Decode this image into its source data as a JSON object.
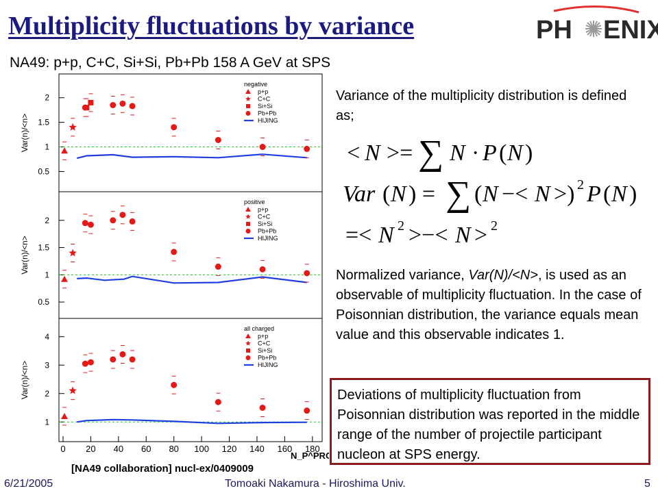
{
  "title": "Multiplicity fluctuations by variance",
  "logo_text": "PHENIX",
  "subtitle": "NA49: p+p, C+C, Si+Si, Pb+Pb 158 A GeV at SPS",
  "description": "Variance of the multiplicity distribution is defined as;",
  "normalized": {
    "prefix": "Normalized variance, ",
    "italic": "Var(N)/<N>",
    "suffix": ", is used as an observable of multiplicity fluctuation. In the case of Poisonnian distribution, the variance equals mean value and this observable indicates 1."
  },
  "box_text": "Deviations of multiplicity fluctuation from Poisonnian distribution was reported in the middle range of the number of projectile participant nucleon at SPS energy.",
  "citation": "[NA49 collaboration] nucl-ex/0409009",
  "footer": {
    "date": "6/21/2005",
    "author": "Tomoaki Nakamura - Hiroshima Univ.",
    "page": "5"
  },
  "colors": {
    "title": "#1a1a80",
    "marker": "#e61919",
    "hijing": "#1f3ee0",
    "reference": "#33bb33",
    "box_border": "#8b1a1a"
  },
  "chart_data": {
    "type": "scatter",
    "ylabel": "Var(n)/<n>",
    "xlabel": "N_P^PROJ",
    "x_ticks": [
      "0",
      "20",
      "40",
      "60",
      "80",
      "100",
      "120",
      "140",
      "160",
      "180"
    ],
    "x_range": [
      0,
      190
    ],
    "legend_entries": [
      "p+p",
      "C+C",
      "Si+Si",
      "Pb+Pb",
      "HIJING"
    ],
    "panels": [
      {
        "name": "negative",
        "ylim": [
          0.2,
          2.4
        ],
        "y_ticks": [
          "0.5",
          "1",
          "1.5",
          "2"
        ],
        "pp": [
          {
            "x": 1,
            "y": 0.92
          }
        ],
        "cc": [
          {
            "x": 7,
            "y": 1.4
          }
        ],
        "sisi": [
          {
            "x": 17,
            "y": 1.8
          },
          {
            "x": 20,
            "y": 1.9
          }
        ],
        "pbpb": [
          {
            "x": 16,
            "y": 1.8
          },
          {
            "x": 36,
            "y": 1.85
          },
          {
            "x": 43,
            "y": 1.88
          },
          {
            "x": 50,
            "y": 1.83
          },
          {
            "x": 80,
            "y": 1.4
          },
          {
            "x": 112,
            "y": 1.14
          },
          {
            "x": 144,
            "y": 1.0
          },
          {
            "x": 176,
            "y": 0.96
          }
        ],
        "hijing": [
          {
            "x": 10,
            "y": 0.77
          },
          {
            "x": 17,
            "y": 0.82
          },
          {
            "x": 36,
            "y": 0.84
          },
          {
            "x": 50,
            "y": 0.79
          },
          {
            "x": 80,
            "y": 0.8
          },
          {
            "x": 112,
            "y": 0.78
          },
          {
            "x": 144,
            "y": 0.85
          },
          {
            "x": 176,
            "y": 0.78
          }
        ]
      },
      {
        "name": "positive",
        "ylim": [
          0.3,
          2.45
        ],
        "y_ticks": [
          "0.5",
          "1",
          "1.5",
          "2"
        ],
        "pp": [
          {
            "x": 1,
            "y": 0.92
          }
        ],
        "cc": [
          {
            "x": 7,
            "y": 1.4
          }
        ],
        "sisi": [],
        "pbpb": [
          {
            "x": 16,
            "y": 1.95
          },
          {
            "x": 20,
            "y": 1.92
          },
          {
            "x": 36,
            "y": 2.0
          },
          {
            "x": 43,
            "y": 2.1
          },
          {
            "x": 50,
            "y": 1.98
          },
          {
            "x": 80,
            "y": 1.42
          },
          {
            "x": 112,
            "y": 1.15
          },
          {
            "x": 144,
            "y": 1.1
          },
          {
            "x": 176,
            "y": 1.03
          }
        ],
        "hijing": [
          {
            "x": 10,
            "y": 0.93
          },
          {
            "x": 17,
            "y": 0.94
          },
          {
            "x": 30,
            "y": 0.9
          },
          {
            "x": 44,
            "y": 0.92
          },
          {
            "x": 50,
            "y": 0.97
          },
          {
            "x": 80,
            "y": 0.85
          },
          {
            "x": 112,
            "y": 0.86
          },
          {
            "x": 144,
            "y": 0.96
          },
          {
            "x": 176,
            "y": 0.86
          }
        ]
      },
      {
        "name": "all charged",
        "ylim": [
          0.5,
          4.5
        ],
        "y_ticks": [
          "1",
          "2",
          "3",
          "4"
        ],
        "pp": [
          {
            "x": 1,
            "y": 1.2
          }
        ],
        "cc": [
          {
            "x": 7,
            "y": 2.1
          }
        ],
        "sisi": [],
        "pbpb": [
          {
            "x": 16,
            "y": 3.05
          },
          {
            "x": 20,
            "y": 3.1
          },
          {
            "x": 36,
            "y": 3.2
          },
          {
            "x": 43,
            "y": 3.38
          },
          {
            "x": 50,
            "y": 3.2
          },
          {
            "x": 80,
            "y": 2.3
          },
          {
            "x": 112,
            "y": 1.7
          },
          {
            "x": 144,
            "y": 1.5
          },
          {
            "x": 176,
            "y": 1.4
          }
        ],
        "hijing": [
          {
            "x": 10,
            "y": 1.0
          },
          {
            "x": 17,
            "y": 1.05
          },
          {
            "x": 36,
            "y": 1.08
          },
          {
            "x": 50,
            "y": 1.07
          },
          {
            "x": 80,
            "y": 1.02
          },
          {
            "x": 112,
            "y": 0.95
          },
          {
            "x": 144,
            "y": 0.98
          },
          {
            "x": 176,
            "y": 0.99
          }
        ]
      }
    ]
  }
}
